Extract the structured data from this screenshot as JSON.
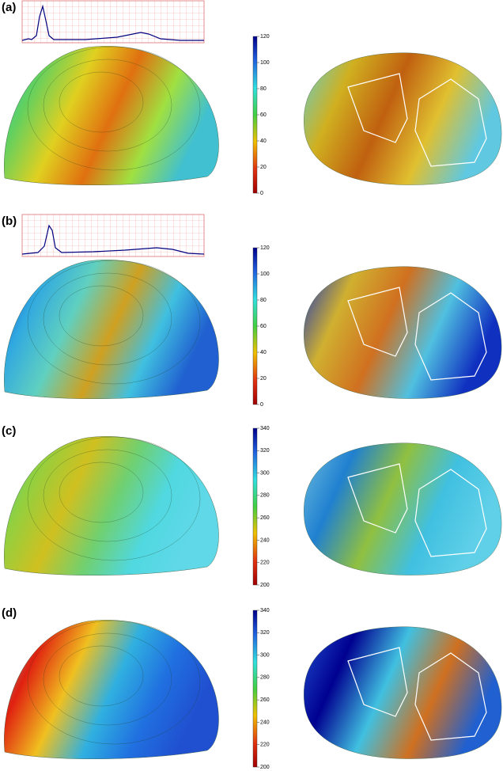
{
  "panels": [
    {
      "label": "(a)",
      "clim": [
        0,
        120
      ],
      "ticks": [
        0,
        20,
        40,
        60,
        80,
        100,
        120
      ]
    },
    {
      "label": "(b)",
      "clim": [
        0,
        120
      ],
      "ticks": [
        0,
        20,
        40,
        60,
        80,
        100,
        120
      ]
    },
    {
      "label": "(c)",
      "clim": [
        200,
        340
      ],
      "ticks": [
        200,
        220,
        240,
        260,
        280,
        300,
        320,
        340
      ]
    },
    {
      "label": "(d)",
      "clim": [
        200,
        340
      ],
      "ticks": [
        200,
        220,
        240,
        260,
        280,
        300,
        320,
        340
      ]
    }
  ]
}
